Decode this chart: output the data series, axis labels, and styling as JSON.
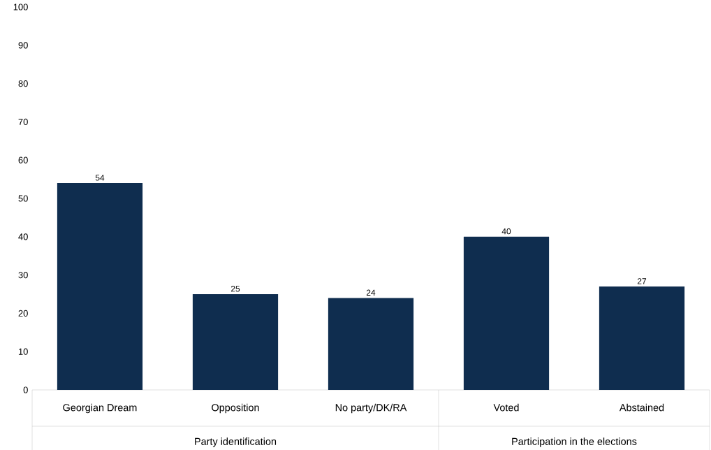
{
  "chart_data": {
    "type": "bar",
    "categories": [
      "Georgian Dream",
      "Opposition",
      "No party/DK/RA",
      "Voted",
      "Abstained"
    ],
    "values": [
      54,
      25,
      24,
      40,
      27
    ],
    "color": "#0f2d4f",
    "ylim": [
      0,
      100
    ],
    "yticks": [
      0,
      10,
      20,
      30,
      40,
      50,
      60,
      70,
      80,
      90,
      100
    ],
    "data_labels": true,
    "annotations": [
      "Party identification",
      "Participation in the elections"
    ]
  }
}
